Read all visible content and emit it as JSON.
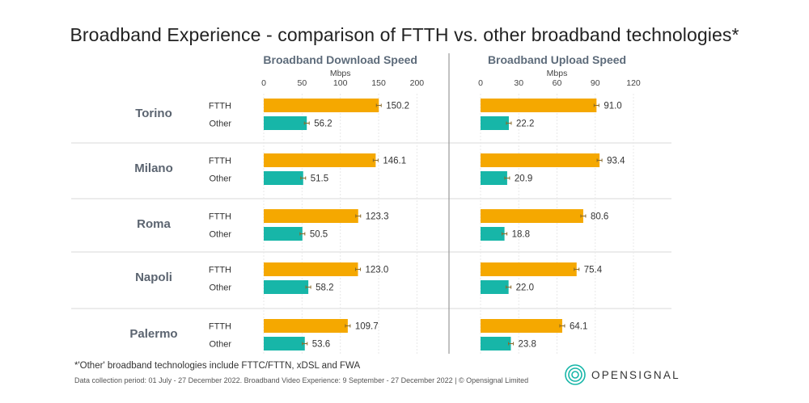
{
  "chart_data": {
    "type": "bar",
    "orientation": "horizontal",
    "title": "Broadband Experience - comparison of FTTH vs. other broadband technologies*",
    "categories": [
      "Torino",
      "Milano",
      "Roma",
      "Napoli",
      "Palermo"
    ],
    "series_labels": [
      "FTTH",
      "Other"
    ],
    "colors": {
      "FTTH": "#f5a800",
      "Other": "#17b6a8"
    },
    "panels": [
      {
        "title": "Broadband Download Speed",
        "unit": "Mbps",
        "ticks": [
          "0",
          "50",
          "100",
          "150",
          "200"
        ],
        "xlim": [
          0,
          200
        ],
        "series": [
          {
            "name": "FTTH",
            "values": [
              150.2,
              146.1,
              123.3,
              123.0,
              109.7
            ],
            "labels": [
              "150.2",
              "146.1",
              "123.3",
              "123.0",
              "109.7"
            ]
          },
          {
            "name": "Other",
            "values": [
              56.2,
              51.5,
              50.5,
              58.2,
              53.6
            ],
            "labels": [
              "56.2",
              "51.5",
              "50.5",
              "58.2",
              "53.6"
            ]
          }
        ]
      },
      {
        "title": "Broadband Upload Speed",
        "unit": "Mbps",
        "ticks": [
          "0",
          "30",
          "60",
          "90",
          "120"
        ],
        "xlim": [
          0,
          120
        ],
        "series": [
          {
            "name": "FTTH",
            "values": [
              91.0,
              93.4,
              80.6,
              75.4,
              64.1
            ],
            "labels": [
              "91.0",
              "93.4",
              "80.6",
              "75.4",
              "64.1"
            ]
          },
          {
            "name": "Other",
            "values": [
              22.2,
              20.9,
              18.8,
              22.0,
              23.8
            ],
            "labels": [
              "22.2",
              "20.9",
              "18.8",
              "22.0",
              "23.8"
            ]
          }
        ]
      }
    ],
    "grid": true,
    "error_bars": true
  },
  "footnote": "*'Other' broadband technologies include FTTC/FTTN, xDSL and FWA",
  "data_note": "Data collection period: 01 July - 27 December 2022. Broadband Video Experience: 9 September - 27 December 2022 | © Opensignal Limited",
  "brand": {
    "name": "OPENSIGNAL",
    "icon": "opensignal-logo-icon"
  }
}
